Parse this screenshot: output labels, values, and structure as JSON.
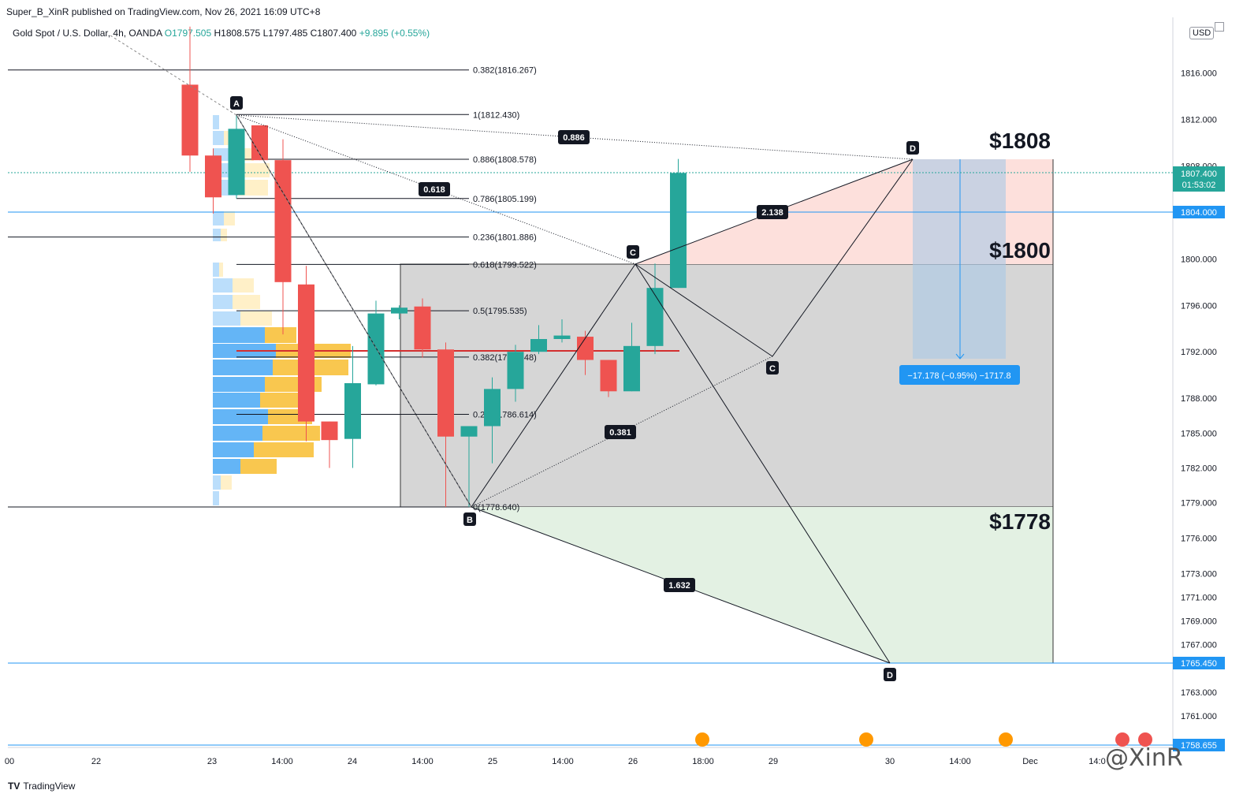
{
  "header": {
    "publisher": "Super_B_XinR published on TradingView.com, Nov 26, 2021 16:09 UTC+8",
    "symbol_prefix": "Gold Spot / U.S. Dollar, 4h, OANDA",
    "ohlc_o": "O1797.505",
    "ohlc_h": "H1808.575",
    "ohlc_l": "L1797.485",
    "ohlc_c": "C1807.400",
    "ohlc_change": "+9.895 (+0.55%)",
    "currency": "USD"
  },
  "footer": {
    "brand": "TradingView",
    "watermark": "@XinR"
  },
  "chart_data": {
    "type": "candlestick",
    "timeframe": "4h",
    "x_ticks": [
      "00",
      "22",
      "23",
      "14:00",
      "24",
      "14:00",
      "25",
      "14:00",
      "26",
      "18:00",
      "29",
      "30",
      "14:00",
      "Dec",
      "14:0"
    ],
    "y_ticks": [
      1761,
      1763,
      1765.45,
      1767,
      1769,
      1771,
      1773,
      1776,
      1779,
      1782,
      1785,
      1788,
      1792,
      1796,
      1800,
      1804,
      1808,
      1812,
      1816
    ],
    "y_tick_labels": [
      "1761.000",
      "1763.000",
      "1765.450",
      "1767.000",
      "1769.000",
      "1771.000",
      "1773.000",
      "1776.000",
      "1779.000",
      "1782.000",
      "1785.000",
      "1788.000",
      "1792.000",
      "1796.000",
      "1800.000",
      "1804.000",
      "1808.000",
      "1812.000",
      "1816.000"
    ],
    "price_labels": {
      "last": "1807.400",
      "countdown": "01:53:02",
      "level_1804": "1804.000",
      "level_1765": "1765.450",
      "bottom": "1758.655"
    },
    "candles": [
      {
        "o": 1815,
        "h": 1820,
        "l": 1807.5,
        "c": 1808.9
      },
      {
        "o": 1808.9,
        "h": 1809.5,
        "l": 1803.9,
        "c": 1805.3
      },
      {
        "o": 1805.5,
        "h": 1812.4,
        "l": 1805.2,
        "c": 1811.2
      },
      {
        "o": 1811.5,
        "h": 1811.5,
        "l": 1808.5,
        "c": 1808.5
      },
      {
        "o": 1808.5,
        "h": 1810.3,
        "l": 1793.5,
        "c": 1798.0
      },
      {
        "o": 1797.8,
        "h": 1799.4,
        "l": 1784.3,
        "c": 1786.0
      },
      {
        "o": 1786.0,
        "h": 1786.0,
        "l": 1782.0,
        "c": 1784.4
      },
      {
        "o": 1784.5,
        "h": 1792.5,
        "l": 1782.0,
        "c": 1789.3
      },
      {
        "o": 1789.2,
        "h": 1796.4,
        "l": 1789.1,
        "c": 1795.3
      },
      {
        "o": 1795.3,
        "h": 1796.0,
        "l": 1794.8,
        "c": 1795.8
      },
      {
        "o": 1795.9,
        "h": 1796.6,
        "l": 1791.5,
        "c": 1792.2
      },
      {
        "o": 1792.2,
        "h": 1792.8,
        "l": 1778.64,
        "c": 1784.7
      },
      {
        "o": 1784.7,
        "h": 1785.6,
        "l": 1778.64,
        "c": 1785.6
      },
      {
        "o": 1785.6,
        "h": 1789.8,
        "l": 1782.4,
        "c": 1788.8
      },
      {
        "o": 1788.8,
        "h": 1792.6,
        "l": 1787.7,
        "c": 1792.0
      },
      {
        "o": 1792.0,
        "h": 1794.3,
        "l": 1791.8,
        "c": 1793.1
      },
      {
        "o": 1793.1,
        "h": 1794.8,
        "l": 1792.8,
        "c": 1793.4
      },
      {
        "o": 1793.3,
        "h": 1793.8,
        "l": 1790.0,
        "c": 1791.3
      },
      {
        "o": 1791.3,
        "h": 1791.3,
        "l": 1788.1,
        "c": 1788.6
      },
      {
        "o": 1788.6,
        "h": 1794.5,
        "l": 1788.6,
        "c": 1792.5
      },
      {
        "o": 1792.5,
        "h": 1799.6,
        "l": 1791.8,
        "c": 1797.5
      },
      {
        "o": 1797.5,
        "h": 1808.6,
        "l": 1797.5,
        "c": 1807.4
      }
    ],
    "fib_levels": [
      {
        "label": "0.382(1816.267)",
        "value": 1816.267
      },
      {
        "label": "1(1812.430)",
        "value": 1812.43
      },
      {
        "label": "0.886(1808.578)",
        "value": 1808.578
      },
      {
        "label": "0.786(1805.199)",
        "value": 1805.199
      },
      {
        "label": "0.236(1801.886)",
        "value": 1801.886
      },
      {
        "label": "0.618(1799.522)",
        "value": 1799.522
      },
      {
        "label": "0.5(1795.535)",
        "value": 1795.535
      },
      {
        "label": "0.382(1791.548)",
        "value": 1791.548
      },
      {
        "label": "0.236(1786.614)",
        "value": 1786.614
      },
      {
        "label": "0(1778.640)",
        "value": 1778.64
      }
    ],
    "pattern_points": [
      "A",
      "B",
      "C",
      "D",
      "C",
      "D"
    ],
    "ratios": [
      "0.886",
      "0.618",
      "2.138",
      "0.381",
      "1.632"
    ],
    "big_labels": [
      "$1808",
      "$1800",
      "$1778"
    ],
    "measure_label": "−17.178 (−0.95%) −1717.8",
    "colors": {
      "up": "#26a69a",
      "down": "#ef5350",
      "level_line": "#2196f3",
      "measure": "#2196f3"
    }
  }
}
